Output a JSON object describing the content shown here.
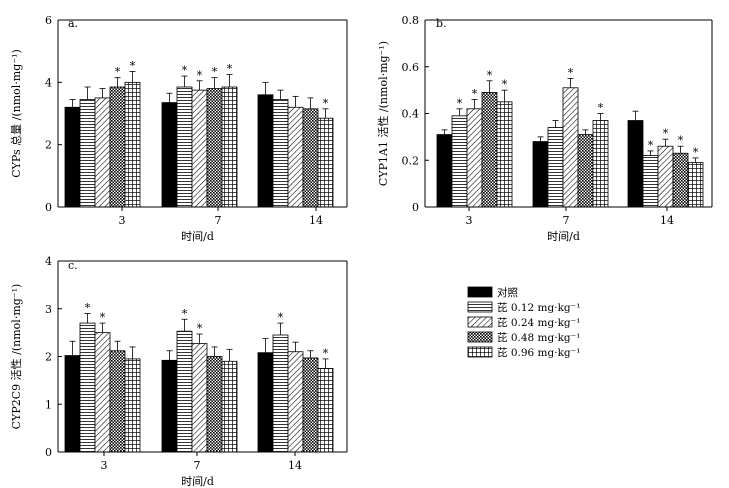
{
  "chart_data": [
    {
      "type": "bar",
      "panel_label": "a.",
      "ylabel": "CYPs 总量 /(nmol·mg⁻¹)",
      "xlabel": "时间/d",
      "categories": [
        "3",
        "7",
        "14"
      ],
      "ylim": [
        0,
        6
      ],
      "yticks": [
        "0",
        "2",
        "4",
        "6"
      ],
      "series": [
        {
          "name": "对照",
          "values": [
            3.2,
            3.35,
            3.6
          ],
          "errors": [
            0.25,
            0.3,
            0.4
          ],
          "sig": [
            false,
            false,
            false
          ]
        },
        {
          "name": "芘 0.12 mg·kg⁻¹",
          "values": [
            3.45,
            3.85,
            3.45
          ],
          "errors": [
            0.4,
            0.35,
            0.3
          ],
          "sig": [
            false,
            true,
            false
          ]
        },
        {
          "name": "芘 0.24 mg·kg⁻¹",
          "values": [
            3.5,
            3.75,
            3.2
          ],
          "errors": [
            0.3,
            0.3,
            0.35
          ],
          "sig": [
            false,
            true,
            false
          ]
        },
        {
          "name": "芘 0.48 mg·kg⁻¹",
          "values": [
            3.85,
            3.8,
            3.15
          ],
          "errors": [
            0.3,
            0.35,
            0.35
          ],
          "sig": [
            true,
            true,
            false
          ]
        },
        {
          "name": "芘 0.96 mg·kg⁻¹",
          "values": [
            4.0,
            3.85,
            2.85
          ],
          "errors": [
            0.35,
            0.4,
            0.3
          ],
          "sig": [
            true,
            true,
            true
          ]
        }
      ]
    },
    {
      "type": "bar",
      "panel_label": "b.",
      "ylabel": "CYP1A1 活性 /(nmol·mg⁻¹)",
      "xlabel": "时间/d",
      "categories": [
        "3",
        "7",
        "14"
      ],
      "ylim": [
        0,
        0.8
      ],
      "yticks": [
        "0",
        "0.2",
        "0.4",
        "0.6",
        "0.8"
      ],
      "series": [
        {
          "name": "对照",
          "values": [
            0.31,
            0.28,
            0.37
          ],
          "errors": [
            0.02,
            0.02,
            0.04
          ],
          "sig": [
            false,
            false,
            false
          ]
        },
        {
          "name": "芘 0.12 mg·kg⁻¹",
          "values": [
            0.39,
            0.34,
            0.22
          ],
          "errors": [
            0.03,
            0.03,
            0.02
          ],
          "sig": [
            true,
            false,
            true
          ]
        },
        {
          "name": "芘 0.24 mg·kg⁻¹",
          "values": [
            0.42,
            0.51,
            0.26
          ],
          "errors": [
            0.04,
            0.04,
            0.03
          ],
          "sig": [
            true,
            true,
            true
          ]
        },
        {
          "name": "芘 0.48 mg·kg⁻¹",
          "values": [
            0.49,
            0.31,
            0.23
          ],
          "errors": [
            0.05,
            0.02,
            0.03
          ],
          "sig": [
            true,
            false,
            true
          ]
        },
        {
          "name": "芘 0.96 mg·kg⁻¹",
          "values": [
            0.45,
            0.37,
            0.19
          ],
          "errors": [
            0.05,
            0.03,
            0.02
          ],
          "sig": [
            true,
            true,
            true
          ]
        }
      ]
    },
    {
      "type": "bar",
      "panel_label": "c.",
      "ylabel": "CYP2C9 活性 /(nmol·mg⁻¹)",
      "xlabel": "时间/d",
      "categories": [
        "3",
        "7",
        "14"
      ],
      "ylim": [
        0,
        4
      ],
      "yticks": [
        "0",
        "1",
        "2",
        "3",
        "4"
      ],
      "series": [
        {
          "name": "对照",
          "values": [
            2.02,
            1.92,
            2.08
          ],
          "errors": [
            0.3,
            0.2,
            0.3
          ],
          "sig": [
            false,
            false,
            false
          ]
        },
        {
          "name": "芘 0.12 mg·kg⁻¹",
          "values": [
            2.7,
            2.53,
            2.45
          ],
          "errors": [
            0.2,
            0.25,
            0.25
          ],
          "sig": [
            true,
            true,
            true
          ]
        },
        {
          "name": "芘 0.24 mg·kg⁻¹",
          "values": [
            2.5,
            2.27,
            2.1
          ],
          "errors": [
            0.2,
            0.2,
            0.2
          ],
          "sig": [
            true,
            true,
            false
          ]
        },
        {
          "name": "芘 0.48 mg·kg⁻¹",
          "values": [
            2.12,
            2.0,
            1.97
          ],
          "errors": [
            0.2,
            0.2,
            0.15
          ],
          "sig": [
            false,
            false,
            false
          ]
        },
        {
          "name": "芘 0.96 mg·kg⁻¹",
          "values": [
            1.95,
            1.9,
            1.75
          ],
          "errors": [
            0.25,
            0.25,
            0.2
          ],
          "sig": [
            false,
            false,
            true
          ]
        }
      ]
    }
  ],
  "legend": {
    "items": [
      "对照",
      "芘 0.12 mg·kg⁻¹",
      "芘 0.24 mg·kg⁻¹",
      "芘 0.48 mg·kg⁻¹",
      "芘 0.96 mg·kg⁻¹"
    ],
    "patterns": [
      "solid",
      "horizontal-lines",
      "diagonal-lines",
      "crosshatch",
      "grid"
    ]
  },
  "sig_marker": "*"
}
